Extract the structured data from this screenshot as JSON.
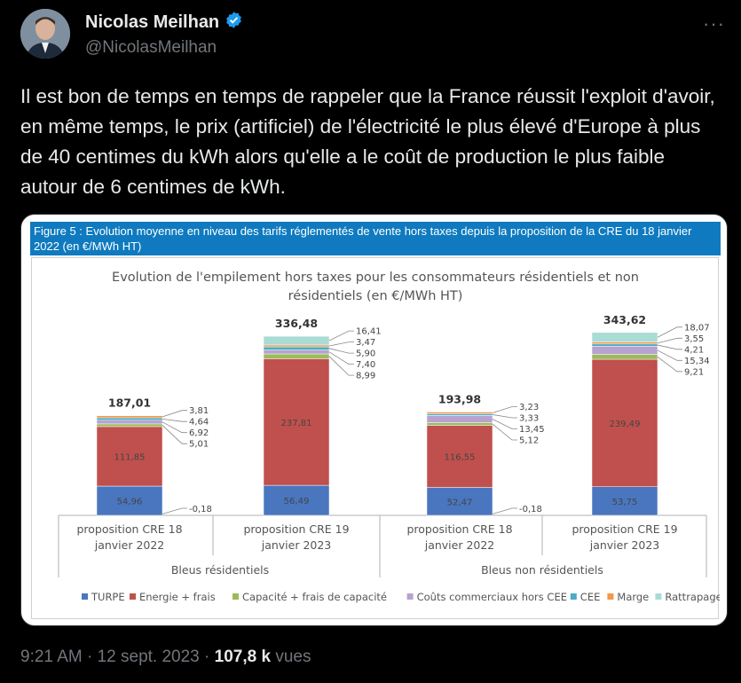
{
  "author": {
    "name": "Nicolas Meilhan",
    "handle": "@NicolasMeilhan"
  },
  "more_icon": "more-icon",
  "tweet": {
    "text": "Il est bon de temps en temps de rappeler que la France réussit l'exploit d'avoir, en même temps, le prix (artificiel) de l'électricité le plus élevé d'Europe à plus de 40 centimes du kWh alors qu'elle a le coût de production le plus faible autour de 6 centimes de kWh."
  },
  "figure": {
    "header": "Figure 5 : Evolution moyenne en niveau des tarifs réglementés de vente hors taxes depuis la proposition de la CRE du 18 janvier 2022 (en €/MWh HT)"
  },
  "chart_data": {
    "type": "bar",
    "stacked": true,
    "title": "Evolution de l'empilement hors taxes pour les consommateurs résidentiels et non résidentiels (en €/MWh HT)",
    "categories": [
      "proposition CRE 18 janvier 2022",
      "proposition CRE 19 janvier 2023",
      "proposition CRE 18 janvier 2022",
      "proposition CRE 19 janvier 2023"
    ],
    "groups": [
      "Bleus résidentiels",
      "Bleus non résidentiels"
    ],
    "totals": [
      "187,01",
      "336,48",
      "193,98",
      "343,62"
    ],
    "series": [
      {
        "name": "TURPE",
        "color": "#4a76c0",
        "values": [
          54.96,
          56.49,
          52.47,
          53.75
        ],
        "labels": [
          "54,96",
          "56,49",
          "52,47",
          "53,75"
        ]
      },
      {
        "name": "Energie + frais",
        "color": "#c0504d",
        "values": [
          111.85,
          237.81,
          116.55,
          239.49
        ],
        "labels": [
          "111,85",
          "237,81",
          "116,55",
          "239,49"
        ]
      },
      {
        "name": "Capacité + frais de capacité",
        "color": "#9bbb59",
        "values": [
          5.01,
          8.99,
          5.12,
          9.21
        ],
        "labels": [
          "5,01",
          "8,99",
          "5,12",
          "9,21"
        ]
      },
      {
        "name": "Coûts commerciaux hors CEE",
        "color": "#b7a3d0",
        "values": [
          6.92,
          7.4,
          13.45,
          15.34
        ],
        "labels": [
          "6,92",
          "7,40",
          "13,45",
          "15,34"
        ]
      },
      {
        "name": "CEE",
        "color": "#4bacc6",
        "values": [
          4.64,
          5.9,
          3.33,
          4.21
        ],
        "labels": [
          "4,64",
          "5,90",
          "3,33",
          "4,21"
        ]
      },
      {
        "name": "Marge",
        "color": "#f79646",
        "values": [
          3.81,
          3.47,
          3.23,
          3.55
        ],
        "labels": [
          "3,81",
          "3,47",
          "3,23",
          "3,55"
        ]
      },
      {
        "name": "Rattrapage",
        "color": "#a8dcd4",
        "values": [
          -0.18,
          16.41,
          -0.18,
          18.07
        ],
        "labels": [
          "-0,18",
          "16,41",
          "-0,18",
          "18,07"
        ]
      }
    ],
    "ylim": [
      0,
      350
    ],
    "legend": "bottom"
  },
  "meta": {
    "time": "9:21 AM · 12 sept. 2023 · ",
    "views_count": "107,8 k",
    "views_label": " vues"
  }
}
